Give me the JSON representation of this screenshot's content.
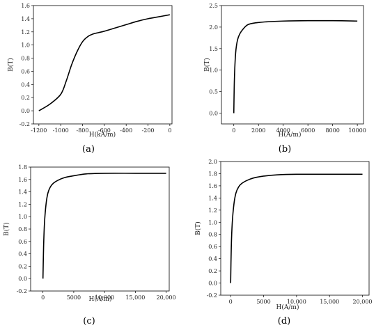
{
  "chart_data": [
    {
      "type": "line",
      "panel_label": "(a)",
      "xlabel": "H(kA/m)",
      "ylabel": "B(T)",
      "xlim": [
        -1250,
        20
      ],
      "ylim": [
        -0.2,
        1.6
      ],
      "x_ticks": [
        -1200,
        -1000,
        -800,
        -600,
        -400,
        -200,
        0
      ],
      "x_tick_labels": [
        "-1200",
        "-1000",
        "-800",
        "-600",
        "-400",
        "-200",
        "0"
      ],
      "y_ticks": [
        -0.2,
        0,
        0.2,
        0.4,
        0.6,
        0.8,
        1.0,
        1.2,
        1.4,
        1.6
      ],
      "y_tick_labels": [
        "-0.2",
        "0.0",
        "0.2",
        "0.4",
        "0.6",
        "0.8",
        "1.0",
        "1.2",
        "1.4",
        "1.6"
      ],
      "series": [
        {
          "x": [
            -1200,
            -1100,
            -1000,
            -950,
            -900,
            -850,
            -800,
            -750,
            -700,
            -650,
            -600,
            -500,
            -400,
            -300,
            -200,
            -100,
            0
          ],
          "y": [
            0.0,
            0.1,
            0.25,
            0.45,
            0.7,
            0.9,
            1.05,
            1.13,
            1.17,
            1.19,
            1.21,
            1.26,
            1.31,
            1.36,
            1.4,
            1.43,
            1.46
          ]
        }
      ]
    },
    {
      "type": "line",
      "panel_label": "(b)",
      "xlabel": "H(A/m)",
      "ylabel": "B(T)",
      "xlim": [
        -1000,
        10500
      ],
      "ylim": [
        -0.25,
        2.5
      ],
      "x_ticks": [
        0,
        2000,
        4000,
        6000,
        8000,
        10000
      ],
      "x_tick_labels": [
        "0",
        "2000",
        "4000",
        "6000",
        "8000",
        "10000"
      ],
      "y_ticks": [
        0,
        0.5,
        1.0,
        1.5,
        2.0,
        2.5
      ],
      "y_tick_labels": [
        "0.0",
        "0.5",
        "1.0",
        "1.5",
        "2.0",
        "2.5"
      ],
      "series": [
        {
          "x": [
            0,
            50,
            150,
            300,
            500,
            800,
            1100,
            1400,
            1800,
            2500,
            4000,
            6000,
            8000,
            10000
          ],
          "y": [
            0.0,
            0.8,
            1.4,
            1.7,
            1.85,
            1.97,
            2.05,
            2.08,
            2.1,
            2.12,
            2.14,
            2.15,
            2.15,
            2.14
          ]
        }
      ]
    },
    {
      "type": "line",
      "panel_label": "(c)",
      "xlabel": "H(A/m)",
      "ylabel": "B(T)",
      "xlim": [
        -2000,
        20500
      ],
      "ylim": [
        -0.2,
        1.8
      ],
      "x_ticks": [
        0,
        5000,
        10000,
        15000,
        20000
      ],
      "x_tick_labels": [
        "0",
        "5000",
        "10,000",
        "15,000",
        "20,000"
      ],
      "y_ticks": [
        -0.2,
        0,
        0.2,
        0.4,
        0.6,
        0.8,
        1.0,
        1.2,
        1.4,
        1.6,
        1.8
      ],
      "y_tick_labels": [
        "-0.2",
        "0.0",
        "0.2",
        "0.4",
        "0.6",
        "0.8",
        "1.0",
        "1.2",
        "1.4",
        "1.6",
        "1.8"
      ],
      "series": [
        {
          "x": [
            0,
            100,
            250,
            500,
            800,
            1200,
            1700,
            2500,
            3500,
            5000,
            7000,
            10000,
            15000,
            20000
          ],
          "y": [
            0.0,
            0.5,
            0.9,
            1.2,
            1.38,
            1.48,
            1.54,
            1.59,
            1.63,
            1.66,
            1.69,
            1.7,
            1.7,
            1.7
          ]
        }
      ]
    },
    {
      "type": "line",
      "panel_label": "(d)",
      "xlabel": "H(A/m)",
      "ylabel": "B(T)",
      "xlim": [
        -1500,
        21000
      ],
      "ylim": [
        -0.2,
        2.0
      ],
      "x_ticks": [
        0,
        5000,
        10000,
        15000,
        20000
      ],
      "x_tick_labels": [
        "0",
        "5000",
        "10,000",
        "15,000",
        "20,000"
      ],
      "y_ticks": [
        -0.2,
        0,
        0.2,
        0.4,
        0.6,
        0.8,
        1.0,
        1.2,
        1.4,
        1.6,
        1.8,
        2.0
      ],
      "y_tick_labels": [
        "-0.2",
        "0.0",
        "0.2",
        "0.4",
        "0.6",
        "0.8",
        "1.0",
        "1.2",
        "1.4",
        "1.6",
        "1.8",
        "2.0"
      ],
      "series": [
        {
          "x": [
            0,
            100,
            250,
            500,
            800,
            1200,
            1700,
            2500,
            3500,
            5000,
            7000,
            10000,
            15000,
            20000
          ],
          "y": [
            0.0,
            0.6,
            1.0,
            1.3,
            1.48,
            1.58,
            1.64,
            1.69,
            1.73,
            1.76,
            1.78,
            1.79,
            1.79,
            1.79
          ]
        }
      ]
    }
  ]
}
